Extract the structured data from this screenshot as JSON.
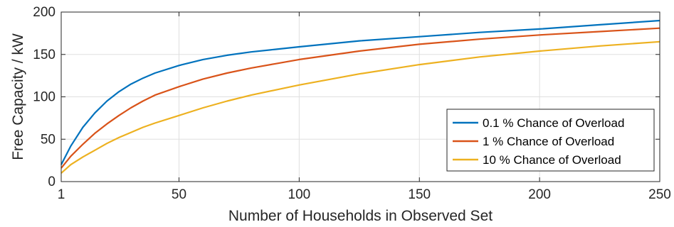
{
  "chart_data": {
    "type": "line",
    "title": "",
    "xlabel": "Number of Households in Observed Set",
    "ylabel": "Free Capacity / kW",
    "xlim": [
      1,
      250
    ],
    "ylim": [
      0,
      200
    ],
    "xticks": [
      1,
      50,
      100,
      150,
      200,
      250
    ],
    "yticks": [
      0,
      50,
      100,
      150,
      200
    ],
    "grid": true,
    "legend_position": "bottom-right",
    "x": [
      1,
      5,
      10,
      15,
      20,
      25,
      30,
      35,
      40,
      50,
      60,
      70,
      80,
      90,
      100,
      125,
      150,
      175,
      200,
      225,
      250
    ],
    "series": [
      {
        "name": "0.1 % Chance of Overload",
        "color": "#0072BD",
        "values": [
          20,
          42,
          64,
          81,
          95,
          106,
          115,
          122,
          128,
          137,
          144,
          149,
          153,
          156,
          159,
          166,
          171,
          176,
          180,
          185,
          190
        ]
      },
      {
        "name": "1 % Chance of Overload",
        "color": "#D95319",
        "values": [
          16,
          30,
          44,
          57,
          68,
          78,
          87,
          95,
          102,
          112,
          121,
          128,
          134,
          139,
          144,
          154,
          162,
          168,
          173,
          177,
          181
        ]
      },
      {
        "name": "10 % Chance of Overload",
        "color": "#EDB120",
        "values": [
          10,
          20,
          29,
          37,
          45,
          52,
          58,
          64,
          69,
          78,
          87,
          95,
          102,
          108,
          114,
          127,
          138,
          147,
          154,
          160,
          165
        ]
      }
    ]
  }
}
